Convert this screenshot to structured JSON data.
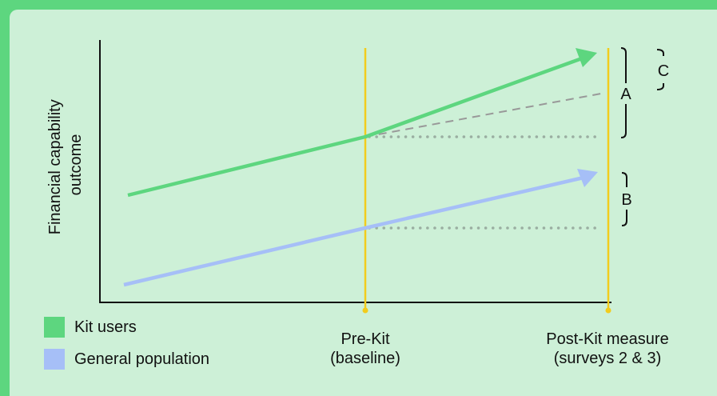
{
  "diagram": {
    "y_axis_label_line1": "Financial capability",
    "y_axis_label_line2": "outcome",
    "x_labels": {
      "pre_line1": "Pre-Kit",
      "pre_line2": "(baseline)",
      "post_line1": "Post-Kit measure",
      "post_line2": "(surveys 2 & 3)"
    },
    "brackets": {
      "a": "A",
      "b": "B",
      "c": "C"
    },
    "legend": {
      "kit_users": "Kit users",
      "general_population": "General population"
    },
    "colors": {
      "background": "#5dd67f",
      "panel": "#cdf0d7",
      "kit_users": "#5dd67f",
      "general_population": "#a6bff7",
      "time_markers": "#f2cc1d",
      "counterfactual": "#999999",
      "baseline_dotted": "#9aaea1"
    }
  }
}
